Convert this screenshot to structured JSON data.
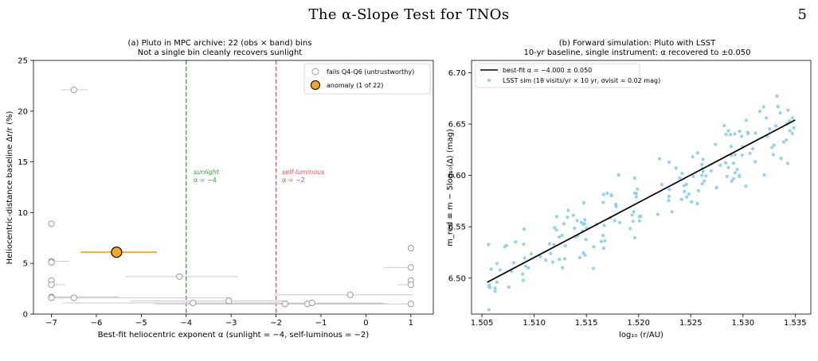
{
  "header": {
    "title": "The α-Slope Test for TNOs",
    "page_number": "5"
  },
  "colors": {
    "gray_marker": "#9a9a9a",
    "anomaly": "#f5a623",
    "sunlight_line": "#2ca02c",
    "selflum_line": "#e8474c",
    "sim_points": "#8fd3ec",
    "fit_line": "#000000"
  },
  "chart_data": [
    {
      "type": "scatter",
      "title": "(a) Pluto in MPC archive: 22 (obs × band) bins",
      "subtitle": "Not a single bin cleanly recovers sunlight",
      "xlabel": "Best-fit heliocentric exponent α  (sunlight = −4, self-luminous = −2)",
      "ylabel": "Heliocentric-distance baseline  Δr/r  (%)",
      "xlim": [
        -7.4,
        1.5
      ],
      "ylim": [
        0,
        25
      ],
      "xticks": [
        -7,
        -6,
        -5,
        -4,
        -3,
        -2,
        -1,
        0,
        1
      ],
      "xtick_labels": [
        "−7",
        "−6",
        "−5",
        "−4",
        "−3",
        "−2",
        "−1",
        "0",
        "1"
      ],
      "yticks": [
        0,
        5,
        10,
        15,
        20,
        25
      ],
      "ytick_labels": [
        "0",
        "5",
        "10",
        "15",
        "20",
        "25"
      ],
      "legend_position": "top-right",
      "legend": [
        {
          "label": "fails Q4-Q6 (untrustworthy)",
          "style": "gray-open-circle"
        },
        {
          "label": "anomaly (1 of 22)",
          "style": "orange-filled-circle"
        }
      ],
      "vlines": [
        {
          "x": -4,
          "color": "#2ca02c",
          "label": "sunlight",
          "sublabel": "α = −4"
        },
        {
          "x": -2,
          "color": "#e8474c",
          "label": "self-luminous",
          "sublabel": "α = −2"
        }
      ],
      "series": [
        {
          "name": "fails Q4-Q6 (untrustworthy)",
          "points": [
            {
              "x": -6.5,
              "y": 22.1,
              "xerr_lo": 0.3,
              "xerr_hi": 0.3
            },
            {
              "x": -7.0,
              "y": 8.9,
              "xerr_lo": 0.0,
              "xerr_hi": 0.0
            },
            {
              "x": -7.0,
              "y": 5.2,
              "xerr_lo": 0.0,
              "xerr_hi": 0.4
            },
            {
              "x": -7.0,
              "y": 5.1,
              "xerr_lo": 0.0,
              "xerr_hi": 0.0
            },
            {
              "x": -7.0,
              "y": 3.3,
              "xerr_lo": 0.0,
              "xerr_hi": 0.0
            },
            {
              "x": -7.0,
              "y": 2.9,
              "xerr_lo": 0.0,
              "xerr_hi": 0.3
            },
            {
              "x": -7.0,
              "y": 1.7,
              "xerr_lo": 0.0,
              "xerr_hi": 1.5
            },
            {
              "x": -7.0,
              "y": 1.6,
              "xerr_lo": 0.0,
              "xerr_hi": 0.4
            },
            {
              "x": -6.5,
              "y": 1.6,
              "xerr_lo": 0.5,
              "xerr_hi": 3.5
            },
            {
              "x": -4.15,
              "y": 3.7,
              "xerr_lo": 1.2,
              "xerr_hi": 1.3
            },
            {
              "x": -3.85,
              "y": 1.1,
              "xerr_lo": 2.9,
              "xerr_hi": 1.5
            },
            {
              "x": -3.05,
              "y": 1.3,
              "xerr_lo": 2.2,
              "xerr_hi": 1.3
            },
            {
              "x": -1.8,
              "y": 1.0,
              "xerr_lo": 2.9,
              "xerr_hi": 2.3
            },
            {
              "x": -1.3,
              "y": 1.0,
              "xerr_lo": 2.8,
              "xerr_hi": 1.8
            },
            {
              "x": -1.2,
              "y": 1.1,
              "xerr_lo": 2.7,
              "xerr_hi": 1.6
            },
            {
              "x": -0.35,
              "y": 1.9,
              "xerr_lo": 1.7,
              "xerr_hi": 1.4
            },
            {
              "x": 1.0,
              "y": 6.5,
              "xerr_lo": 0.0,
              "xerr_hi": 0.0
            },
            {
              "x": 1.0,
              "y": 4.6,
              "xerr_lo": 0.6,
              "xerr_hi": 0.0
            },
            {
              "x": 1.0,
              "y": 3.3,
              "xerr_lo": 0.0,
              "xerr_hi": 0.0
            },
            {
              "x": 1.0,
              "y": 2.9,
              "xerr_lo": 0.3,
              "xerr_hi": 0.0
            },
            {
              "x": 1.0,
              "y": 1.0,
              "xerr_lo": 5.0,
              "xerr_hi": 0.0
            }
          ]
        },
        {
          "name": "anomaly (1 of 22)",
          "points": [
            {
              "x": -5.55,
              "y": 6.1,
              "xerr_lo": 0.8,
              "xerr_hi": 0.9
            }
          ]
        }
      ]
    },
    {
      "type": "scatter",
      "title": "(b) Forward simulation: Pluto with LSST",
      "subtitle": "10-yr baseline, single instrument: α recovered to ±0.050",
      "xlabel": "log₁₀ (r/AU)",
      "ylabel": "m_red ≡ m − 5log₁₀(Δ)  (mag)",
      "xlim": [
        1.504,
        1.5365
      ],
      "ylim": [
        6.465,
        6.712
      ],
      "xticks": [
        1.505,
        1.51,
        1.515,
        1.52,
        1.525,
        1.53,
        1.535
      ],
      "xtick_labels": [
        "1.505",
        "1.510",
        "1.515",
        "1.520",
        "1.525",
        "1.530",
        "1.535"
      ],
      "yticks": [
        6.5,
        6.55,
        6.6,
        6.65,
        6.7
      ],
      "ytick_labels": [
        "6.50",
        "6.55",
        "6.60",
        "6.65",
        "6.70"
      ],
      "legend_position": "top-left",
      "legend": [
        {
          "label": "best-fit α = −4.000 ± 0.050",
          "style": "black-line"
        },
        {
          "label": "LSST sim (18 visits/yr × 10 yr, σvisit = 0.02 mag)",
          "style": "blue-dot"
        }
      ],
      "fit_line": {
        "x": [
          1.5055,
          1.535
        ],
        "y": [
          6.496,
          6.654
        ],
        "alpha": -4.0,
        "alpha_err": 0.05
      },
      "sim": {
        "n_points": 180,
        "sigma_mag": 0.02
      }
    }
  ]
}
